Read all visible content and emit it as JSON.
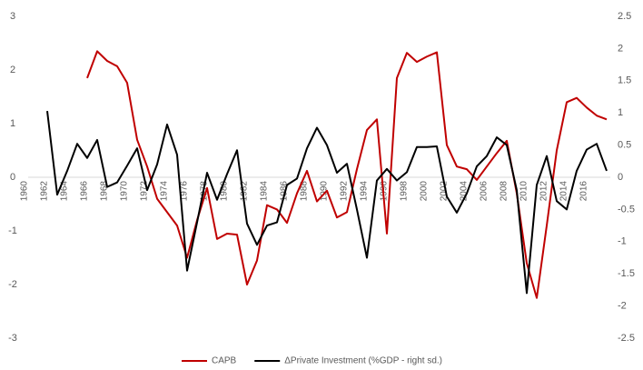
{
  "chart_data": {
    "type": "line",
    "x": [
      1960,
      1961,
      1962,
      1963,
      1964,
      1965,
      1966,
      1967,
      1968,
      1969,
      1970,
      1971,
      1972,
      1973,
      1974,
      1975,
      1976,
      1977,
      1978,
      1979,
      1980,
      1981,
      1982,
      1983,
      1984,
      1985,
      1986,
      1987,
      1988,
      1989,
      1990,
      1991,
      1992,
      1993,
      1994,
      1995,
      1996,
      1997,
      1998,
      1999,
      2000,
      2001,
      2002,
      2003,
      2004,
      2005,
      2006,
      2007,
      2008,
      2009,
      2010,
      2011,
      2012,
      2013,
      2014,
      2015,
      2016,
      2017
    ],
    "xlim": [
      1960,
      2017
    ],
    "xticks": [
      1960,
      1962,
      1964,
      1966,
      1968,
      1970,
      1972,
      1974,
      1976,
      1978,
      1980,
      1982,
      1984,
      1986,
      1988,
      1990,
      1992,
      1994,
      1996,
      1998,
      2000,
      2002,
      2004,
      2006,
      2008,
      2010,
      2012,
      2014,
      2016
    ],
    "ylim": [
      -3,
      3
    ],
    "yticks": [
      -3,
      -2,
      -1,
      0,
      1,
      2,
      3
    ],
    "y2lim": [
      -2.5,
      2.5
    ],
    "y2ticks": [
      -2.5,
      -2,
      -1.5,
      -1,
      -0.5,
      0,
      0.5,
      1,
      1.5,
      2,
      2.5
    ],
    "legend": "bottom",
    "series": [
      {
        "name": "CAPB",
        "color": "#c00000",
        "values": [
          null,
          null,
          null,
          null,
          null,
          1.85,
          2.35,
          2.17,
          2.07,
          1.76,
          0.7,
          0.2,
          -0.4,
          -0.65,
          -0.9,
          -1.5,
          -0.8,
          -0.2,
          -1.15,
          -1.05,
          -1.07,
          -2.0,
          -1.55,
          -0.52,
          -0.6,
          -0.85,
          -0.3,
          0.12,
          -0.45,
          -0.25,
          -0.75,
          -0.65,
          0.15,
          0.88,
          1.08,
          -1.05,
          1.85,
          2.32,
          2.15,
          2.25,
          2.33,
          0.6,
          0.2,
          0.15,
          -0.05,
          0.2,
          0.45,
          0.68,
          -0.3,
          -1.6,
          -2.25,
          -0.9,
          0.5,
          1.4,
          1.48,
          1.3,
          1.15,
          1.08
        ]
      },
      {
        "name": "ΔPrivate Investment (%GDP - right sd.)",
        "color": "#000000",
        "axis": "y2",
        "values": [
          null,
          1.03,
          -0.27,
          0.1,
          0.52,
          0.3,
          0.58,
          -0.15,
          -0.08,
          0.18,
          0.45,
          -0.2,
          0.2,
          0.82,
          0.35,
          -1.45,
          -0.7,
          0.07,
          -0.35,
          0.05,
          0.42,
          -0.72,
          -1.05,
          -0.75,
          -0.7,
          -0.12,
          -0.02,
          0.45,
          0.77,
          0.5,
          0.07,
          0.21,
          -0.5,
          -1.25,
          -0.05,
          0.13,
          -0.05,
          0.08,
          0.47,
          0.47,
          0.48,
          -0.3,
          -0.55,
          -0.25,
          0.17,
          0.33,
          0.62,
          0.5,
          -0.2,
          -1.8,
          -0.12,
          0.33,
          -0.37,
          -0.5,
          0.1,
          0.43,
          0.52,
          0.1
        ]
      }
    ]
  }
}
